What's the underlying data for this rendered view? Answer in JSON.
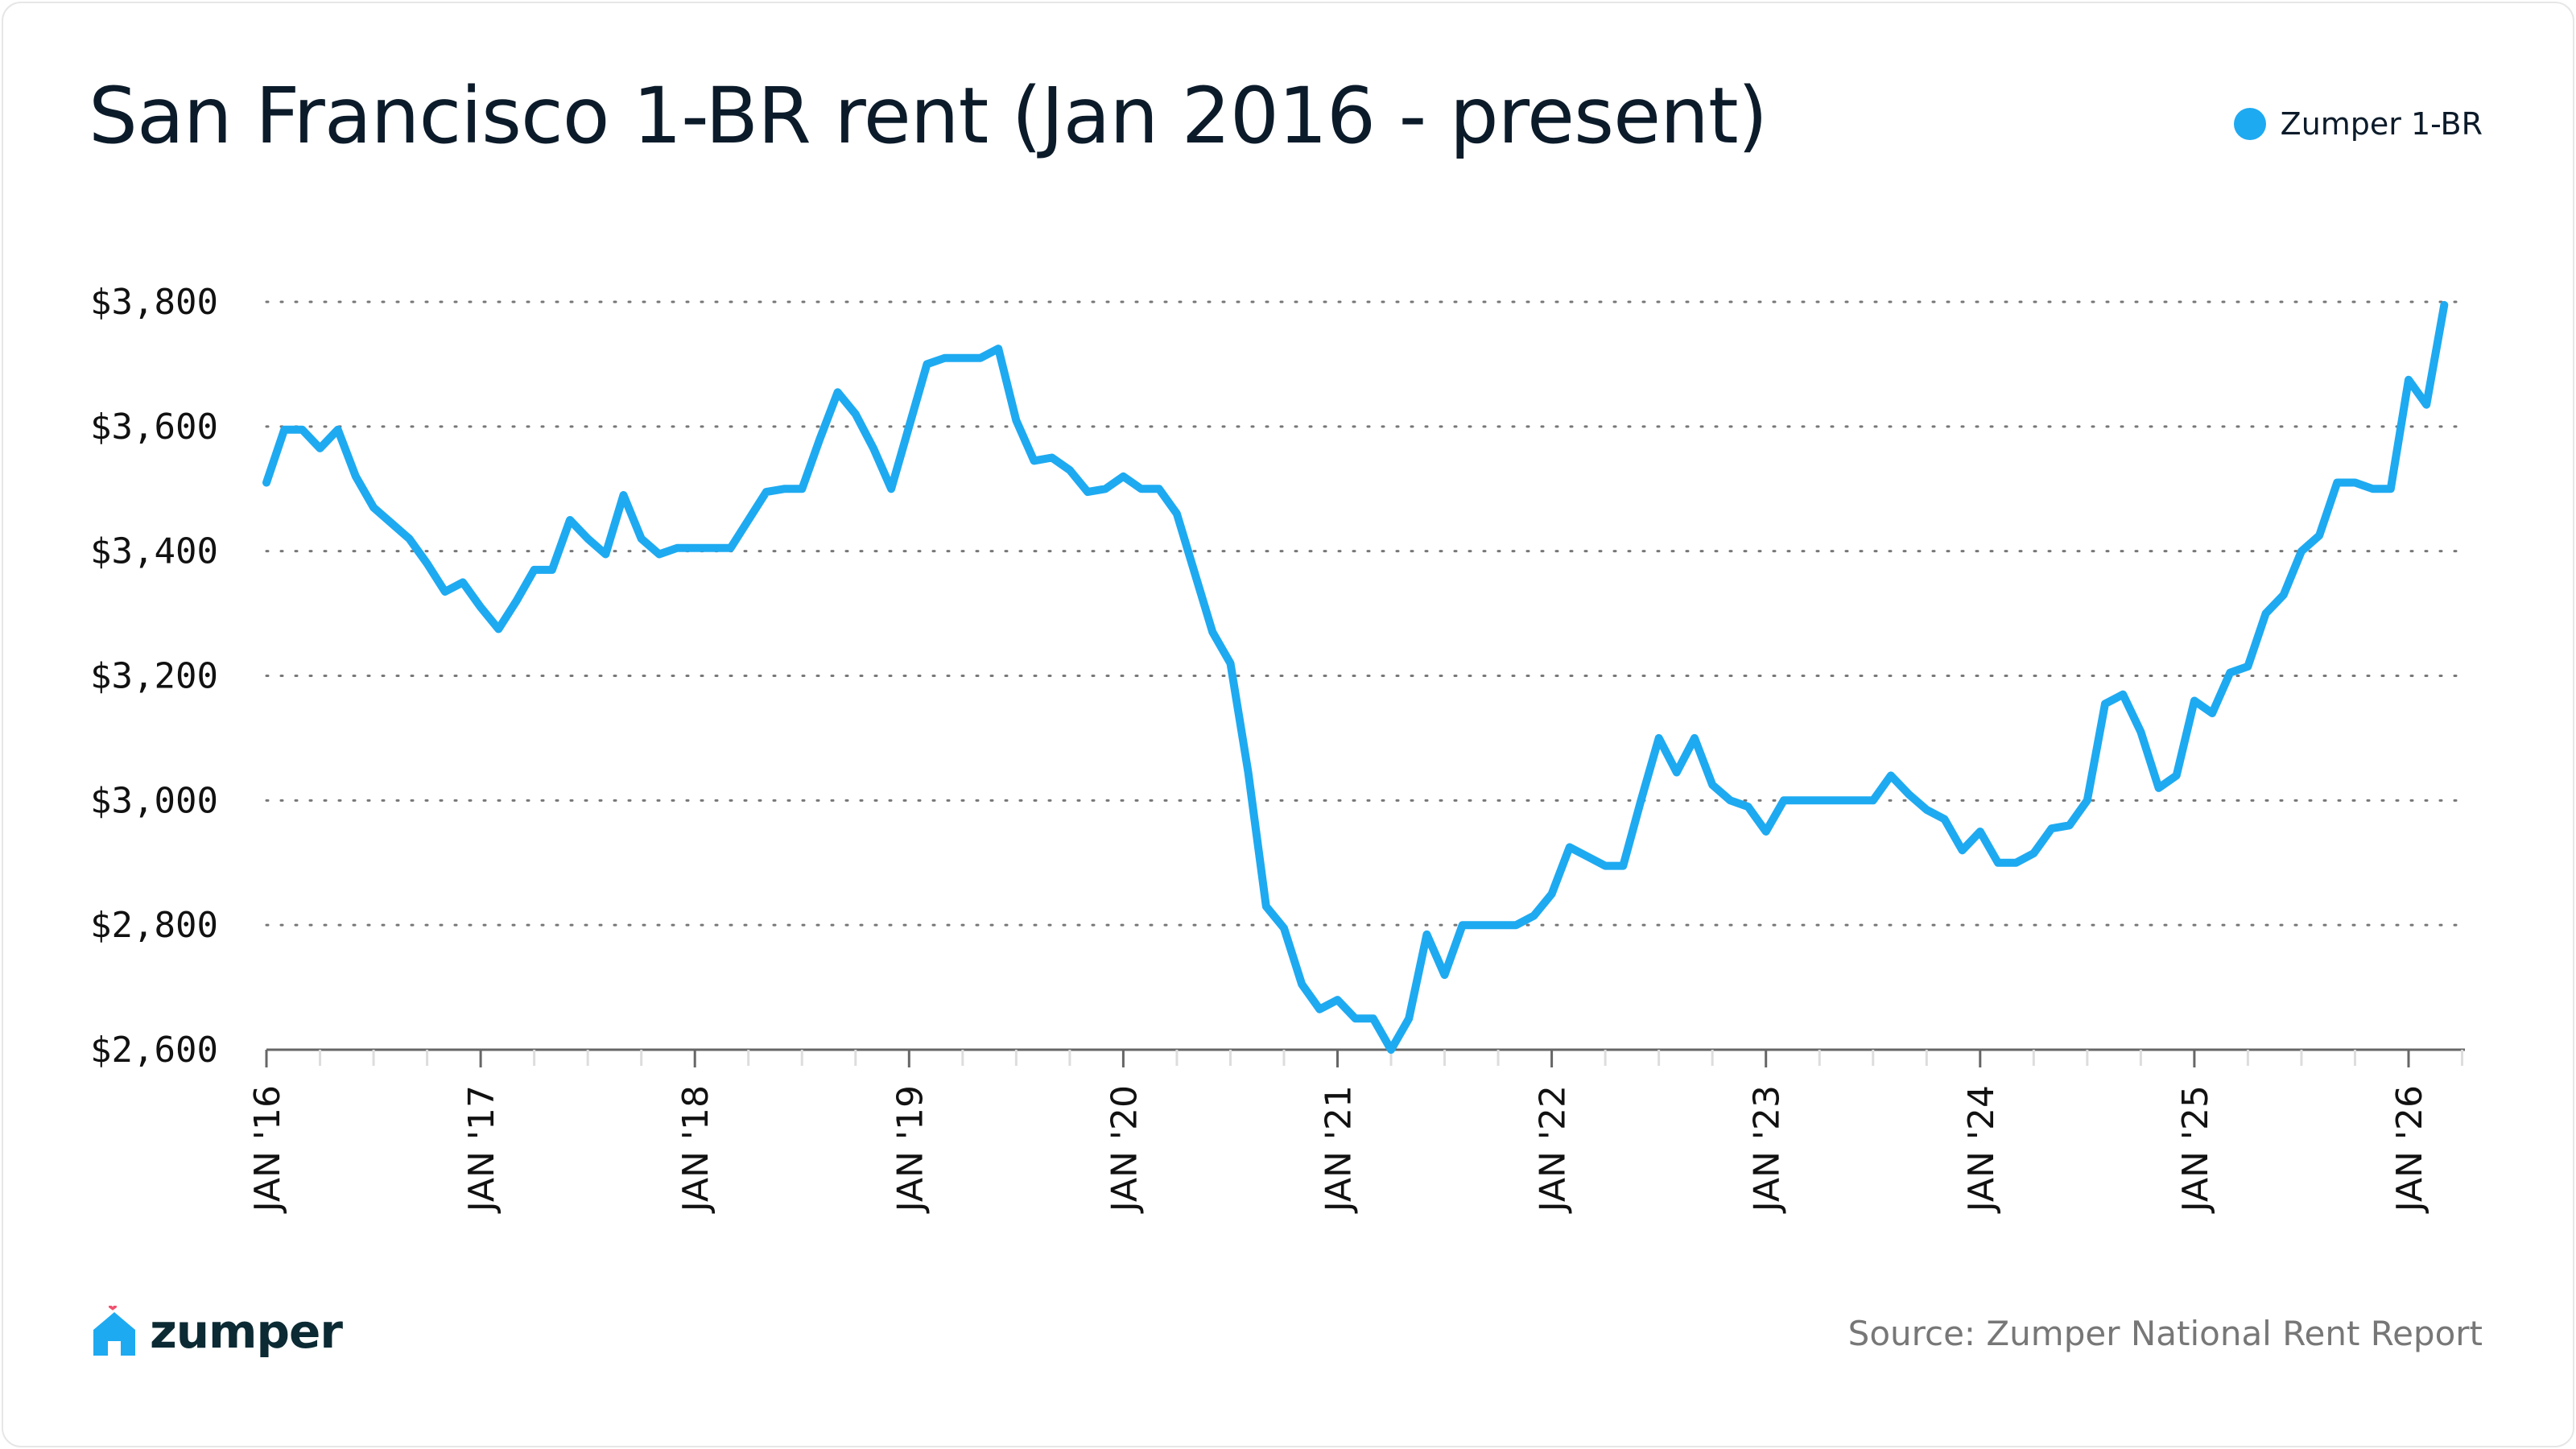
{
  "colors": {
    "line": "#1eaaf1",
    "text": "#0c1b2a",
    "grid": "#777777",
    "source": "#777777"
  },
  "footer": {
    "logo_text": "zumper",
    "source": "Source: Zumper National Rent Report"
  },
  "chart_data": {
    "type": "line",
    "title": "San Francisco 1-BR rent (Jan 2016 - present)",
    "xlabel": "",
    "ylabel": "",
    "x_start": "Jan 2016",
    "x_interval": "month",
    "ylim": [
      2600,
      3800
    ],
    "yticks": [
      2600,
      2800,
      3000,
      3200,
      3400,
      3600,
      3800
    ],
    "ytick_labels": [
      "$2,600",
      "$2,800",
      "$3,000",
      "$3,200",
      "$3,400",
      "$3,600",
      "$3,800"
    ],
    "xtick_labels": [
      "JAN '16",
      "JAN '17",
      "JAN '18",
      "JAN '19",
      "JAN '20",
      "JAN '21",
      "JAN '22",
      "JAN '23",
      "JAN '24",
      "JAN '25",
      "JAN '26"
    ],
    "grid": "horizontal dotted",
    "legend_position": "top-right",
    "series": [
      {
        "name": "Zumper 1-BR",
        "values": [
          3510,
          3595,
          3595,
          3565,
          3595,
          3520,
          3470,
          3445,
          3420,
          3380,
          3335,
          3350,
          3310,
          3275,
          3320,
          3370,
          3370,
          3450,
          3420,
          3395,
          3490,
          3420,
          3395,
          3405,
          3405,
          3405,
          3405,
          3450,
          3495,
          3500,
          3500,
          3580,
          3655,
          3620,
          3565,
          3500,
          3600,
          3700,
          3710,
          3710,
          3710,
          3725,
          3610,
          3545,
          3550,
          3530,
          3495,
          3500,
          3520,
          3500,
          3500,
          3460,
          3365,
          3270,
          3220,
          3045,
          2830,
          2795,
          2705,
          2665,
          2680,
          2650,
          2650,
          2600,
          2650,
          2785,
          2720,
          2800,
          2800,
          2800,
          2800,
          2815,
          2850,
          2925,
          2910,
          2895,
          2895,
          3000,
          3100,
          3045,
          3100,
          3025,
          3000,
          2990,
          2950,
          3000,
          3000,
          3000,
          3000,
          3000,
          3000,
          3040,
          3010,
          2985,
          2970,
          2920,
          2950,
          2900,
          2900,
          2915,
          2955,
          2960,
          3000,
          3155,
          3170,
          3110,
          3020,
          3040,
          3160,
          3140,
          3205,
          3215,
          3300,
          3330,
          3400,
          3425,
          3510,
          3510,
          3500,
          3500,
          3675,
          3635,
          3795
        ]
      }
    ]
  }
}
